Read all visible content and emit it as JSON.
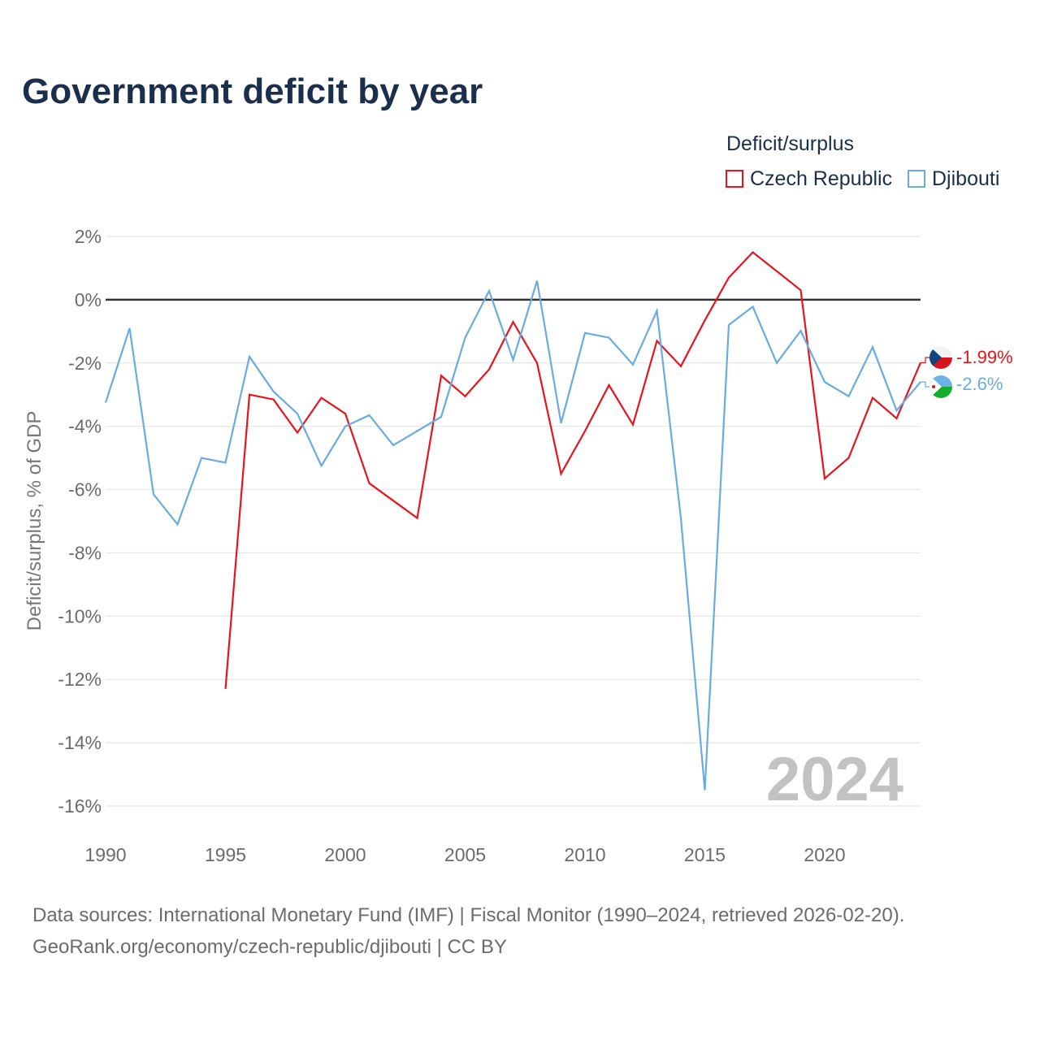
{
  "title": "Government deficit by year",
  "legend": {
    "title": "Deficit/surplus",
    "items": [
      {
        "label": "Czech Republic",
        "color": "#e8141c"
      },
      {
        "label": "Djibouti",
        "color": "#6aabe0"
      }
    ]
  },
  "year_watermark": "2024",
  "source": {
    "line1": "Data sources: International Monetary Fund (IMF) | Fiscal Monitor (1990–2024, retrieved 2026-02-20).",
    "line2": "GeoRank.org/economy/czech-republic/djibouti | CC BY"
  },
  "chart_data": {
    "type": "line",
    "title": "Government deficit by year",
    "xlabel": "",
    "ylabel": "Deficit/surplus, % of GDP",
    "xlim": [
      1990,
      2024
    ],
    "ylim": [
      -16,
      2
    ],
    "x_ticks": [
      1990,
      1995,
      2000,
      2005,
      2010,
      2015,
      2020
    ],
    "y_ticks": [
      {
        "value": 2,
        "label": "2%"
      },
      {
        "value": 0,
        "label": "0%"
      },
      {
        "value": -2,
        "label": "-2%"
      },
      {
        "value": -4,
        "label": "-4%"
      },
      {
        "value": -6,
        "label": "-6%"
      },
      {
        "value": -8,
        "label": "-8%"
      },
      {
        "value": -10,
        "label": "-10%"
      },
      {
        "value": -12,
        "label": "-12%"
      },
      {
        "value": -14,
        "label": "-14%"
      },
      {
        "value": -16,
        "label": "-16%"
      }
    ],
    "grid": true,
    "legend_position": "top-right",
    "series": [
      {
        "name": "Czech Republic",
        "color": "#e8141c",
        "x": [
          1995,
          1996,
          1997,
          1998,
          1999,
          2000,
          2001,
          2002,
          2003,
          2004,
          2005,
          2006,
          2007,
          2008,
          2009,
          2010,
          2011,
          2012,
          2013,
          2014,
          2015,
          2016,
          2017,
          2018,
          2019,
          2020,
          2021,
          2022,
          2023,
          2024
        ],
        "values": [
          -12.3,
          -3.0,
          -3.15,
          -4.2,
          -3.1,
          -3.6,
          -5.8,
          -6.35,
          -6.9,
          -2.4,
          -3.05,
          -2.2,
          -0.7,
          -2.0,
          -5.5,
          -4.15,
          -2.7,
          -3.95,
          -1.3,
          -2.1,
          -0.65,
          0.7,
          1.5,
          0.9,
          0.3,
          -5.65,
          -5.0,
          -3.1,
          -3.75,
          -1.99
        ],
        "end_label": "-1.99%"
      },
      {
        "name": "Djibouti",
        "color": "#6aabe0",
        "x": [
          1990,
          1991,
          1992,
          1993,
          1994,
          1995,
          1996,
          1997,
          1998,
          1999,
          2000,
          2001,
          2002,
          2003,
          2004,
          2005,
          2006,
          2007,
          2008,
          2009,
          2010,
          2011,
          2012,
          2013,
          2014,
          2015,
          2016,
          2017,
          2018,
          2019,
          2020,
          2021,
          2022,
          2023,
          2024
        ],
        "values": [
          -3.25,
          -0.9,
          -6.15,
          -7.1,
          -5.0,
          -5.15,
          -1.8,
          -2.9,
          -3.6,
          -5.25,
          -4.0,
          -3.65,
          -4.6,
          -4.15,
          -3.7,
          -1.2,
          0.28,
          -1.9,
          0.6,
          -3.9,
          -1.05,
          -1.2,
          -2.05,
          -0.35,
          -6.9,
          -15.5,
          -0.8,
          -0.22,
          -2.0,
          -0.98,
          -2.6,
          -3.05,
          -1.5,
          -3.5,
          -2.6
        ],
        "end_label": "-2.6%"
      }
    ]
  }
}
